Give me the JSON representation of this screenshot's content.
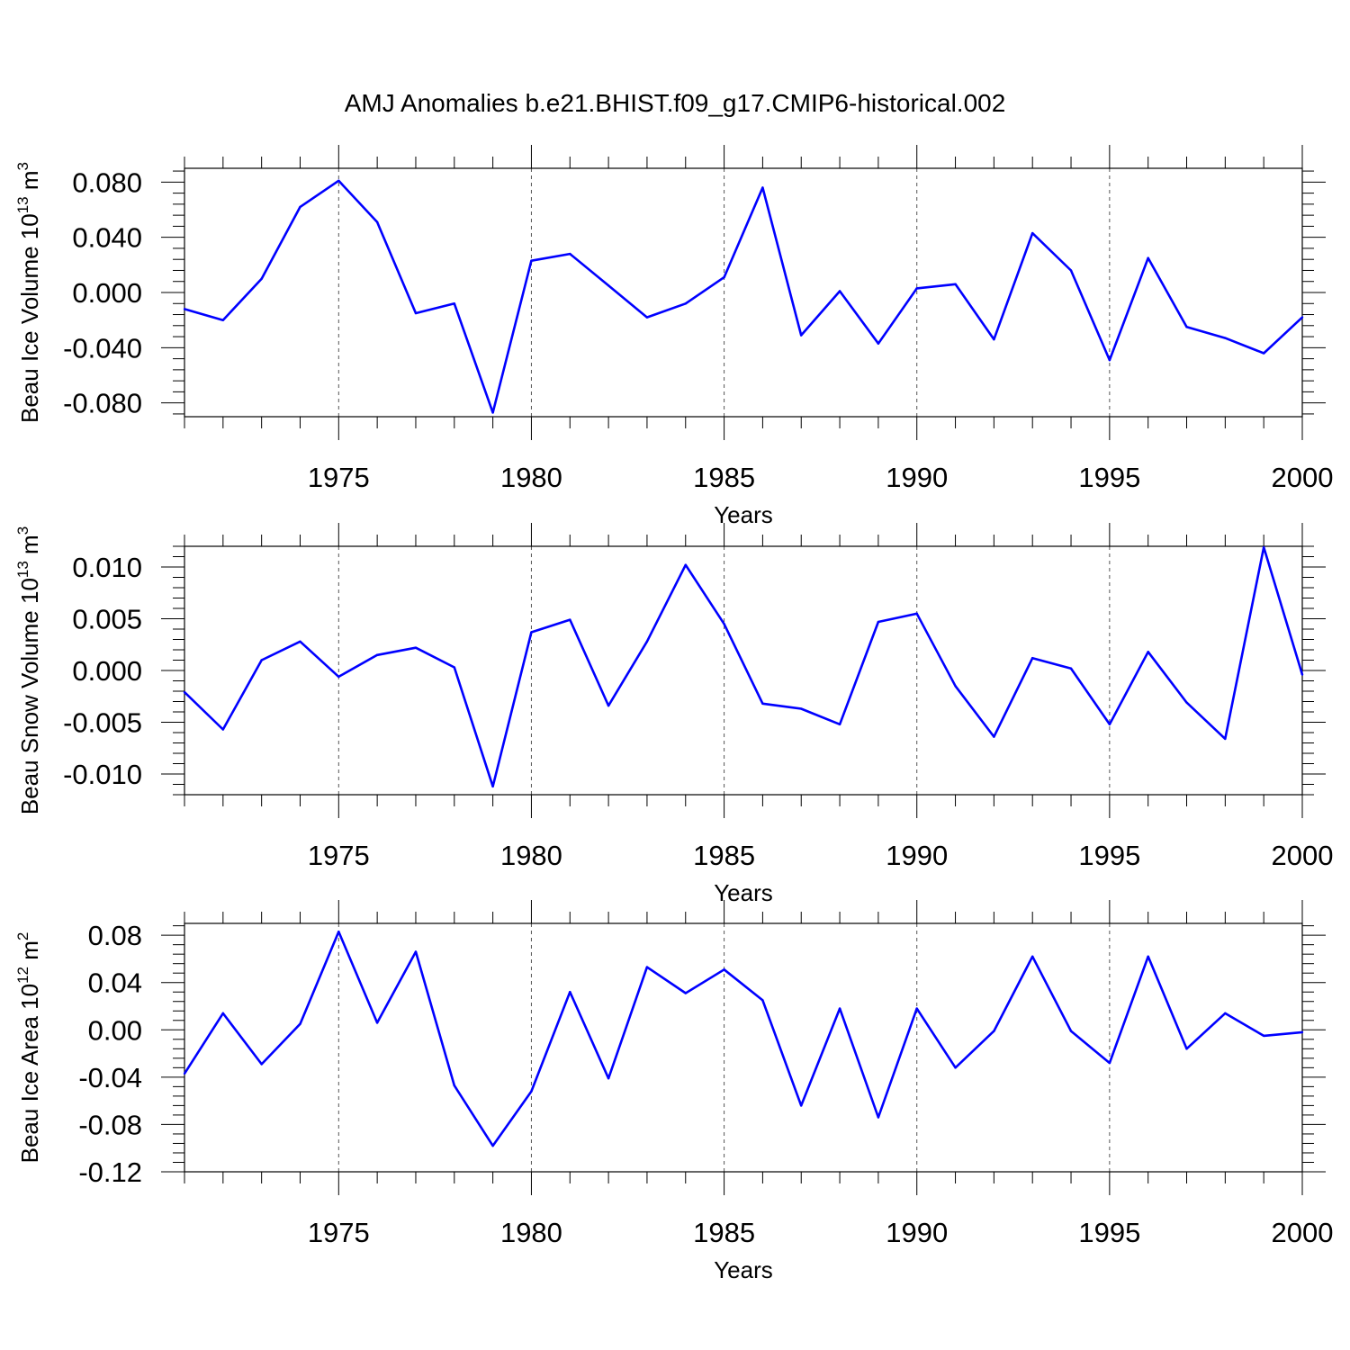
{
  "title": "AMJ Anomalies b.e21.BHIST.f09_g17.CMIP6-historical.002",
  "line_color": "#0000ff",
  "chart_data": [
    {
      "type": "line",
      "ylabel": {
        "text": "Beau Ice Volume 10",
        "exp": "13",
        "unit": " m",
        "unit_exp": "3"
      },
      "xlabel": "Years",
      "xlim": [
        1971,
        2000
      ],
      "ylim": [
        -0.09,
        0.09
      ],
      "xticks": [
        1975,
        1980,
        1985,
        1990,
        1995,
        2000
      ],
      "yticks": [
        0.08,
        0.04,
        0.0,
        -0.04,
        -0.08
      ],
      "ytick_labels": [
        "0.080",
        "0.040",
        "0.000",
        "-0.040",
        "-0.080"
      ],
      "x": [
        1971,
        1972,
        1973,
        1974,
        1975,
        1976,
        1977,
        1978,
        1979,
        1980,
        1981,
        1982,
        1983,
        1984,
        1985,
        1986,
        1987,
        1988,
        1989,
        1990,
        1991,
        1992,
        1993,
        1994,
        1995,
        1996,
        1997,
        1998,
        1999,
        2000
      ],
      "y": [
        -0.012,
        -0.02,
        0.01,
        0.062,
        0.081,
        0.051,
        -0.015,
        -0.008,
        -0.087,
        0.023,
        0.028,
        0.005,
        -0.018,
        -0.008,
        0.011,
        0.076,
        -0.031,
        0.001,
        -0.037,
        0.003,
        0.006,
        -0.034,
        0.043,
        0.016,
        -0.049,
        0.025,
        -0.025,
        -0.033,
        -0.044,
        -0.018
      ]
    },
    {
      "type": "line",
      "ylabel": {
        "text": "Beau Snow Volume 10",
        "exp": "13",
        "unit": " m",
        "unit_exp": "3"
      },
      "xlabel": "Years",
      "xlim": [
        1971,
        2000
      ],
      "ylim": [
        -0.012,
        0.012
      ],
      "xticks": [
        1975,
        1980,
        1985,
        1990,
        1995,
        2000
      ],
      "yticks": [
        0.01,
        0.005,
        0.0,
        -0.005,
        -0.01
      ],
      "ytick_labels": [
        "0.010",
        "0.005",
        "0.000",
        "-0.005",
        "-0.010"
      ],
      "x": [
        1971,
        1972,
        1973,
        1974,
        1975,
        1976,
        1977,
        1978,
        1979,
        1980,
        1981,
        1982,
        1983,
        1984,
        1985,
        1986,
        1987,
        1988,
        1989,
        1990,
        1991,
        1992,
        1993,
        1994,
        1995,
        1996,
        1997,
        1998,
        1999,
        2000
      ],
      "y": [
        -0.0021,
        -0.0057,
        0.001,
        0.0028,
        -0.0006,
        0.0015,
        0.0022,
        0.0003,
        -0.0112,
        0.0037,
        0.0049,
        -0.0034,
        0.0028,
        0.0102,
        0.0045,
        -0.0032,
        -0.0037,
        -0.0052,
        0.0047,
        0.0055,
        -0.0015,
        -0.0064,
        0.0012,
        0.0002,
        -0.0052,
        0.0018,
        -0.0031,
        -0.0066,
        0.0119,
        -0.0004
      ]
    },
    {
      "type": "line",
      "ylabel": {
        "text": "Beau Ice Area 10",
        "exp": "12",
        "unit": " m",
        "unit_exp": "2"
      },
      "xlabel": "Years",
      "xlim": [
        1971,
        2000
      ],
      "ylim": [
        -0.12,
        0.09
      ],
      "xticks": [
        1975,
        1980,
        1985,
        1990,
        1995,
        2000
      ],
      "yticks": [
        0.08,
        0.04,
        0.0,
        -0.04,
        -0.08,
        -0.12
      ],
      "ytick_labels": [
        "0.08",
        "0.04",
        "0.00",
        "-0.04",
        "-0.08",
        "-0.12"
      ],
      "x": [
        1971,
        1972,
        1973,
        1974,
        1975,
        1976,
        1977,
        1978,
        1979,
        1980,
        1981,
        1982,
        1983,
        1984,
        1985,
        1986,
        1987,
        1988,
        1989,
        1990,
        1991,
        1992,
        1993,
        1994,
        1995,
        1996,
        1997,
        1998,
        1999,
        2000
      ],
      "y": [
        -0.037,
        0.014,
        -0.029,
        0.005,
        0.083,
        0.006,
        0.066,
        -0.047,
        -0.098,
        -0.052,
        0.032,
        -0.041,
        0.053,
        0.031,
        0.051,
        0.025,
        -0.064,
        0.018,
        -0.074,
        0.018,
        -0.032,
        -0.001,
        0.062,
        -0.001,
        -0.028,
        0.062,
        -0.016,
        0.014,
        -0.005,
        -0.002
      ]
    }
  ]
}
